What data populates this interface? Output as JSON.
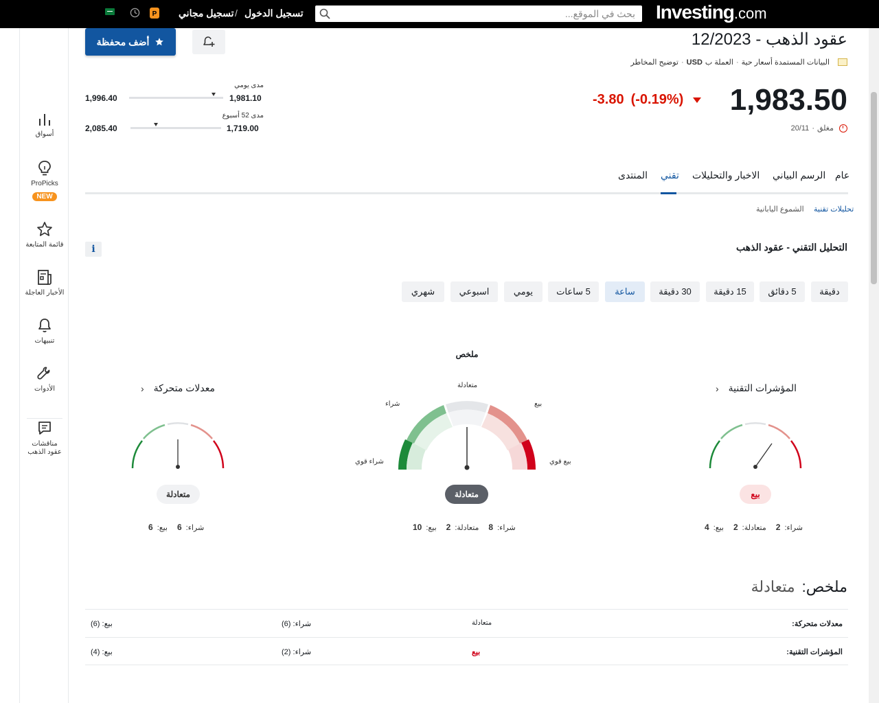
{
  "topbar": {
    "logo_main": "Investing",
    "logo_suffix": ".com",
    "search_placeholder": "بحث في الموقع...",
    "login_label": "تسجيل الدخول",
    "separator": "/",
    "signup_label": "تسجيل مجاني",
    "icons": [
      "search-icon",
      "propicks-icon",
      "history-icon",
      "saudi-flag-icon"
    ]
  },
  "sidebar": {
    "items": [
      {
        "label": "أسواق",
        "icon": "bar-chart-icon"
      },
      {
        "label": "ProPicks",
        "icon": "lightbulb-icon",
        "badge": "NEW"
      },
      {
        "label": "قائمة المتابعة",
        "icon": "star-icon"
      },
      {
        "label": "الأخبار العاجلة",
        "icon": "news-icon"
      },
      {
        "label": "تنبيهات",
        "icon": "bell-icon"
      },
      {
        "label": "الأدوات",
        "icon": "wrench-icon"
      },
      {
        "label": "مناقشات عقود الذهب",
        "icon": "comment-icon"
      }
    ]
  },
  "header": {
    "title": "عقود الذهب - 12/2023",
    "add_portfolio_label": "أضف محفظة",
    "meta": {
      "data_label": "البيانات المستمدة أسعار حية",
      "currency_label": "العملة ب",
      "currency": "USD",
      "risk_label": "توضيح المخاطر"
    },
    "price": "1,983.50",
    "change": "-3.80",
    "change_pct": "(-0.19%)",
    "status": "مغلق",
    "date": "20/11"
  },
  "ranges": {
    "daily": {
      "label": "مدى يومي",
      "low": "1,981.10",
      "high": "1,996.40",
      "position": 0.1
    },
    "week52": {
      "label": "مدى 52 أسبوع",
      "low": "1,719.00",
      "high": "2,085.40",
      "position": 0.72
    }
  },
  "tabs": [
    {
      "label": "عام",
      "active": false
    },
    {
      "label": "الرسم البياني",
      "active": false
    },
    {
      "label": "الاخبار والتحليلات",
      "active": false
    },
    {
      "label": "تقني",
      "active": true
    },
    {
      "label": "المنتدى",
      "active": false
    }
  ],
  "subtabs": [
    {
      "label": "تحليلات تقنية",
      "active": true
    },
    {
      "label": "الشموع اليابانية",
      "active": false
    }
  ],
  "technical": {
    "title": "التحليل التقني - عقود الذهب",
    "info_icon": "i",
    "timeframes": [
      {
        "label": "دقيقة",
        "active": false
      },
      {
        "label": "5 دقائق",
        "active": false
      },
      {
        "label": "15 دقيقة",
        "active": false
      },
      {
        "label": "30 دقيقة",
        "active": false
      },
      {
        "label": "ساعة",
        "active": true
      },
      {
        "label": "5 ساعات",
        "active": false
      },
      {
        "label": "يومي",
        "active": false
      },
      {
        "label": "اسبوعي",
        "active": false
      },
      {
        "label": "شهري",
        "active": false
      }
    ]
  },
  "gauges": {
    "summary": {
      "title": "ملخص",
      "labels": {
        "neutral": "متعادلة",
        "buy": "شراء",
        "sell": "بيع",
        "strong_buy": "شراء قوي",
        "strong_sell": "بيع قوي"
      },
      "verdict": "متعادلة",
      "counts": {
        "buy_label": "شراء:",
        "buy": "8",
        "neutral_label": "متعادلة:",
        "neutral": "2",
        "sell_label": "بيع:",
        "sell": "10"
      }
    },
    "indicators": {
      "title": "المؤشرات التقنية",
      "verdict": "بيع",
      "counts": {
        "buy_label": "شراء:",
        "buy": "2",
        "neutral_label": "متعادلة:",
        "neutral": "2",
        "sell_label": "بيع:",
        "sell": "4"
      }
    },
    "moving_averages": {
      "title": "معدلات متحركة",
      "verdict": "متعادلة",
      "counts": {
        "buy_label": "شراء:",
        "buy": "6",
        "sell_label": "بيع:",
        "sell": "6"
      }
    }
  },
  "summary_table": {
    "heading_label": "ملخص:",
    "heading_value": "متعادلة",
    "rows": [
      {
        "name": "معدلات متحركة:",
        "verdict": "متعادلة",
        "buy": "شراء: (6)",
        "sell": "بيع: (6)"
      },
      {
        "name": "المؤشرات التقنية:",
        "verdict": "بيع",
        "buy": "شراء: (2)",
        "sell": "بيع: (4)"
      }
    ]
  },
  "colors": {
    "brand_blue": "#1256a0",
    "down_red": "#d91400",
    "buy_green": "#1d8a3a",
    "sell_red": "#d0021b",
    "neutral_dark": "#5b5f67"
  }
}
